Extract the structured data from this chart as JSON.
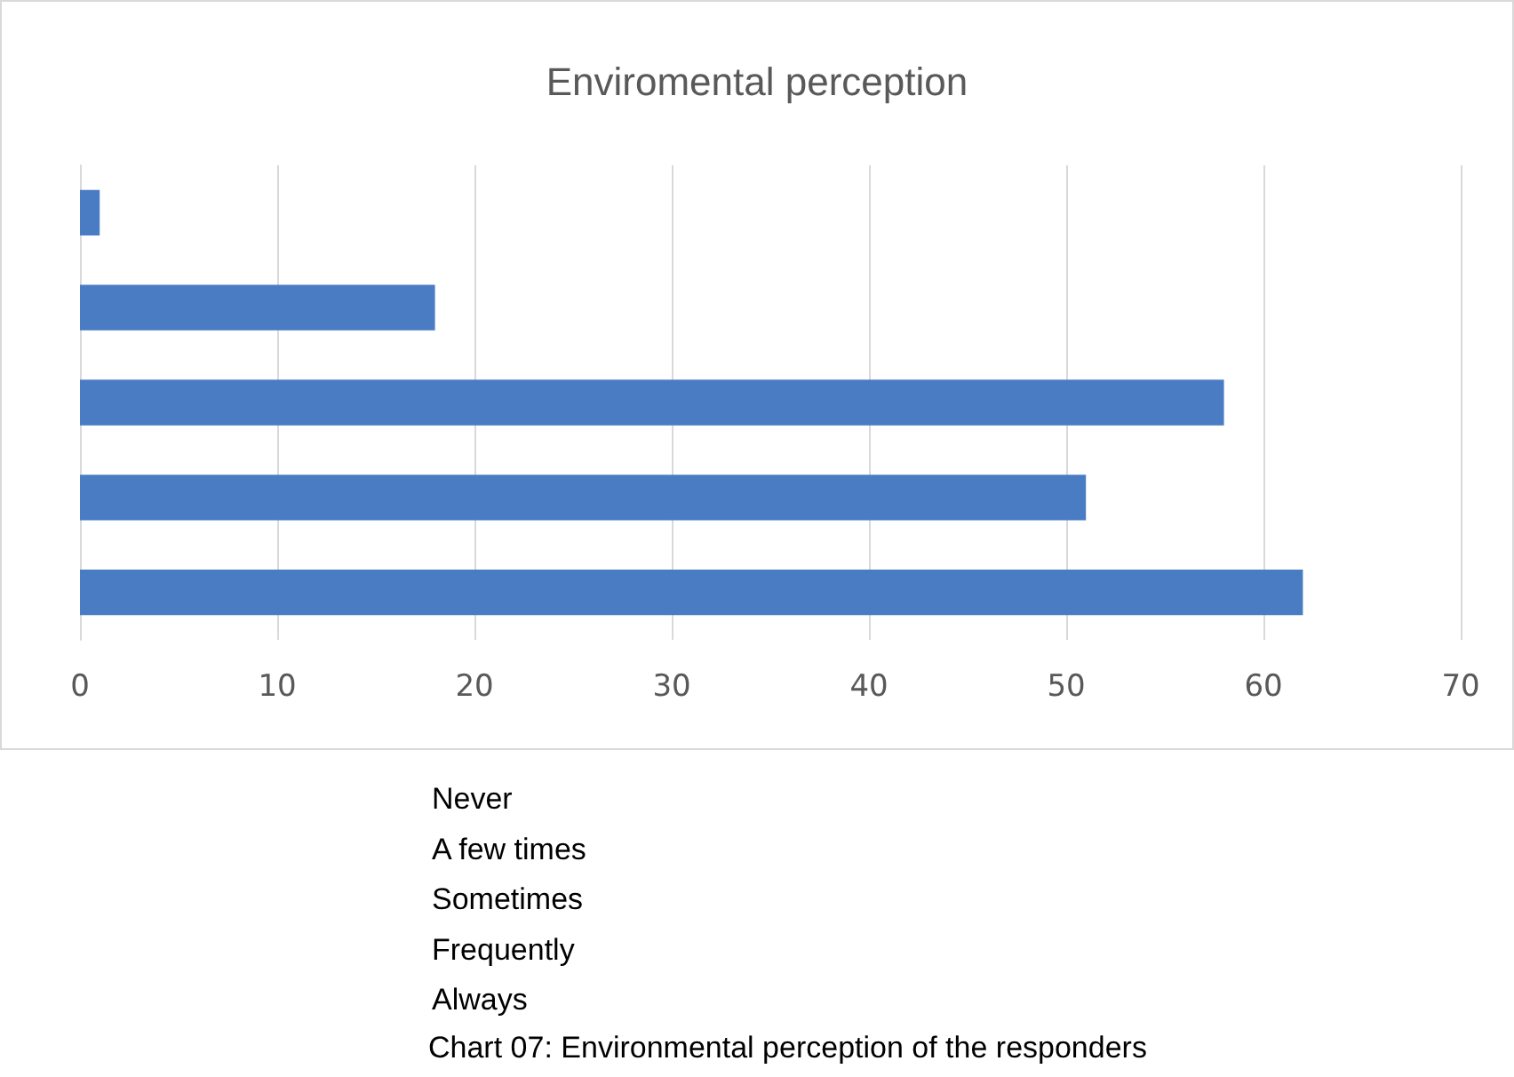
{
  "chart_data": {
    "type": "bar",
    "orientation": "horizontal",
    "title": "Enviromental perception",
    "categories": [
      null,
      null,
      null,
      null,
      null
    ],
    "values": [
      1,
      18,
      58,
      51,
      62
    ],
    "color": "#4a7cc4",
    "xlim": [
      0,
      70
    ],
    "xticks": [
      0,
      10,
      20,
      30,
      40,
      50,
      60,
      70
    ],
    "grid": "x",
    "annotations": [
      "Never",
      "A few times",
      "Sometimes",
      "Frequently",
      "Always",
      "Chart 07: Environmental perception of the responders"
    ]
  }
}
